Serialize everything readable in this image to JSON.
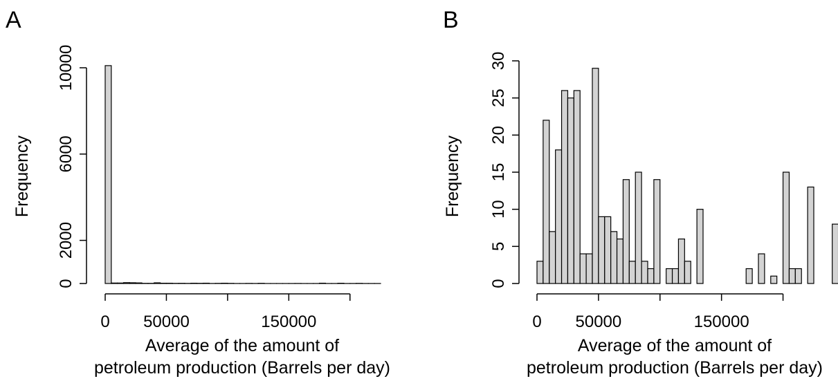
{
  "chart_data": [
    {
      "type": "bar",
      "panel_label": "A",
      "xlabel_lines": [
        "Average of the amount of",
        "petroleum production (Barrels per day)"
      ],
      "ylabel": "Frequency",
      "bin_width": 5000,
      "x_start": 0,
      "xlim": [
        0,
        225000
      ],
      "ylim": [
        0,
        10000
      ],
      "x_ticks": [
        0,
        50000,
        100000,
        150000,
        200000
      ],
      "x_tick_labels": [
        "0",
        "50000",
        "",
        "150000",
        ""
      ],
      "y_ticks": [
        0,
        2000,
        6000,
        10000
      ],
      "y_tick_labels": [
        "0",
        "2000",
        "6000",
        "10000"
      ],
      "values": [
        10100,
        22,
        22,
        40,
        35,
        28,
        9,
        9,
        32,
        14,
        14,
        8,
        10,
        6,
        14,
        10,
        15,
        3,
        8,
        14,
        8,
        2,
        2,
        6,
        3,
        10,
        1,
        1,
        1,
        1,
        2,
        4,
        1,
        1,
        2,
        15,
        2,
        2,
        13,
        2,
        3,
        8,
        2,
        2,
        2
      ],
      "grid": false
    },
    {
      "type": "bar",
      "panel_label": "B",
      "xlabel_lines": [
        "Average of the amount of",
        "petroleum production (Barrels per day)"
      ],
      "ylabel": "Frequency",
      "bin_width": 5000,
      "x_start": 0,
      "xlim": [
        0,
        225000
      ],
      "ylim": [
        0,
        30
      ],
      "x_ticks": [
        0,
        50000,
        100000,
        150000,
        200000
      ],
      "x_tick_labels": [
        "0",
        "50000",
        "",
        "150000",
        ""
      ],
      "y_ticks": [
        0,
        5,
        10,
        15,
        20,
        25,
        30
      ],
      "y_tick_labels": [
        "0",
        "5",
        "10",
        "15",
        "20",
        "25",
        "30"
      ],
      "values": [
        3,
        22,
        7,
        18,
        26,
        25,
        26,
        4,
        4,
        29,
        9,
        9,
        7,
        6,
        14,
        3,
        15,
        3,
        2,
        14,
        0,
        2,
        2,
        6,
        3,
        0,
        10,
        0,
        0,
        0,
        0,
        0,
        0,
        0,
        2,
        0,
        4,
        0,
        1,
        0,
        15,
        2,
        2,
        0,
        13,
        0,
        0,
        0,
        8
      ],
      "grid": false
    }
  ]
}
